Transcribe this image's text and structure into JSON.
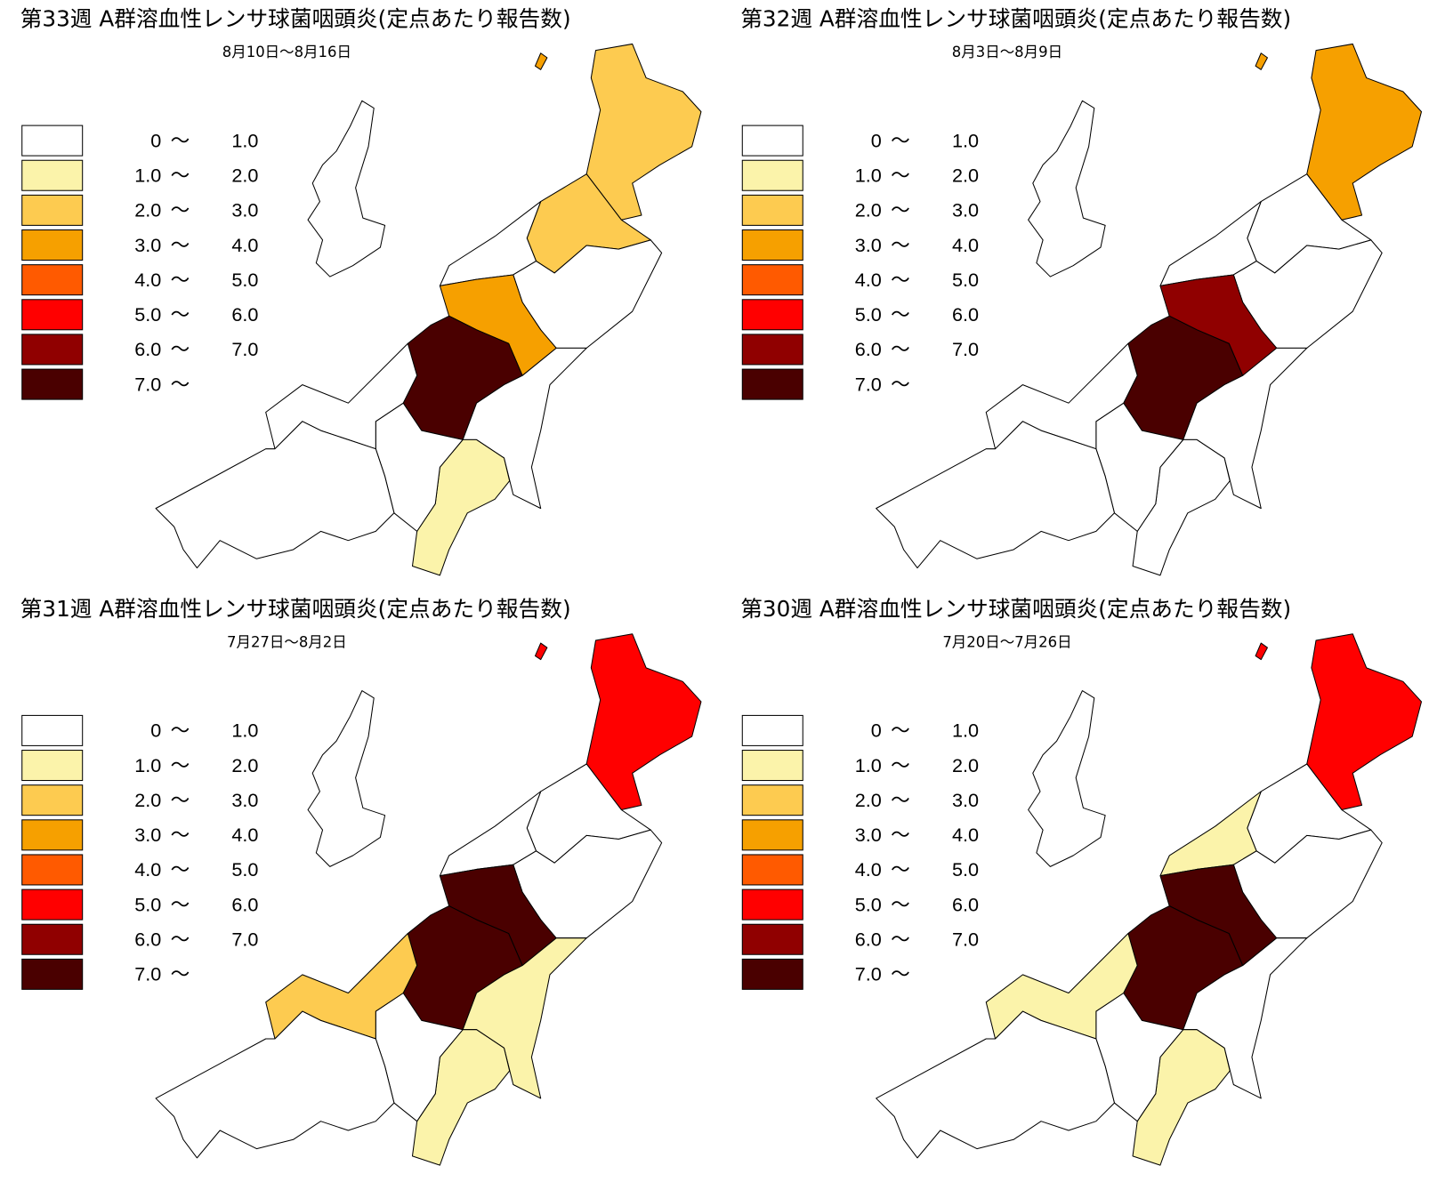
{
  "panels": [
    {
      "title": "第33週 A群溶血性レンサ球菌咽頭炎(定点あたり報告数)",
      "period": "8月10日～8月16日",
      "region_colors": [
        "#ffffff",
        "#f6a000",
        "#fdcb50",
        "#fdcb50",
        "#ffffff",
        "#ffffff",
        "#f6a000",
        "#4a0000",
        "#ffffff",
        "#fbf3aa",
        "#ffffff",
        "#ffffff",
        "#ffffff"
      ]
    },
    {
      "title": "第32週 A群溶血性レンサ球菌咽頭炎(定点あたり報告数)",
      "period": "8月3日～8月9日",
      "region_colors": [
        "#ffffff",
        "#f6a000",
        "#f6a000",
        "#ffffff",
        "#ffffff",
        "#ffffff",
        "#900000",
        "#4a0000",
        "#ffffff",
        "#ffffff",
        "#ffffff",
        "#ffffff",
        "#ffffff"
      ]
    },
    {
      "title": "第31週 A群溶血性レンサ球菌咽頭炎(定点あたり報告数)",
      "period": "7月27日～8月2日",
      "region_colors": [
        "#ffffff",
        "#ff0000",
        "#ff0000",
        "#ffffff",
        "#ffffff",
        "#ffffff",
        "#4a0000",
        "#4a0000",
        "#fbf3aa",
        "#fbf3aa",
        "#ffffff",
        "#fdcb50",
        "#ffffff"
      ]
    },
    {
      "title": "第30週 A群溶血性レンサ球菌咽頭炎(定点あたり報告数)",
      "period": "7月20日～7月26日",
      "region_colors": [
        "#ffffff",
        "#ff0000",
        "#ff0000",
        "#ffffff",
        "#fbf3aa",
        "#ffffff",
        "#4a0000",
        "#4a0000",
        "#ffffff",
        "#fbf3aa",
        "#ffffff",
        "#fbf3aa",
        "#ffffff"
      ]
    }
  ],
  "legend": [
    {
      "from": "0",
      "to": "1.0",
      "color": "#ffffff"
    },
    {
      "from": "1.0",
      "to": "2.0",
      "color": "#fbf3aa"
    },
    {
      "from": "2.0",
      "to": "3.0",
      "color": "#fdcb50"
    },
    {
      "from": "3.0",
      "to": "4.0",
      "color": "#f6a000"
    },
    {
      "from": "4.0",
      "to": "5.0",
      "color": "#ff5a00"
    },
    {
      "from": "5.0",
      "to": "6.0",
      "color": "#ff0000"
    },
    {
      "from": "6.0",
      "to": "7.0",
      "color": "#900000"
    },
    {
      "from": "7.0",
      "color": "#4a0000"
    }
  ],
  "legend_separator": "〜"
}
